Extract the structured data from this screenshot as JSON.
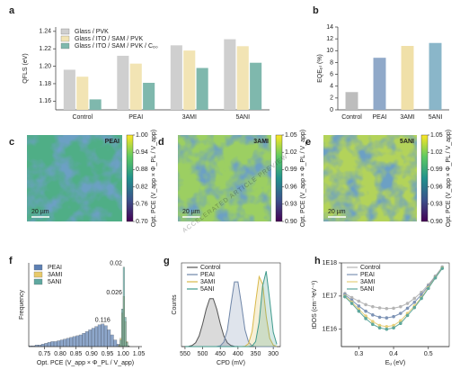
{
  "watermark": "ACCELERATED ARTICLE PREVIEW",
  "chart_data": [
    {
      "type": "bar",
      "label": "a",
      "ylabel": "QFLS (eV)",
      "categories": [
        "Control",
        "PEAI",
        "3AMI",
        "5ANI"
      ],
      "series": [
        {
          "name": "Glass / PVK",
          "color": "#cfcfcf",
          "values": [
            1.196,
            1.212,
            1.224,
            1.231
          ]
        },
        {
          "name": "Glass / ITO / SAM / PVK",
          "color": "#f2e4b4",
          "values": [
            1.188,
            1.203,
            1.218,
            1.223
          ]
        },
        {
          "name": "Glass / ITO / SAM / PVK / C₆₀",
          "color": "#7fb8ad",
          "values": [
            1.162,
            1.181,
            1.198,
            1.204
          ]
        }
      ],
      "ylim": [
        1.15,
        1.245
      ],
      "yticks": [
        1.16,
        1.18,
        {
          "value": 1.2,
          "label": "1.20"
        },
        1.22,
        1.24
      ],
      "legend": "top-left"
    },
    {
      "type": "bar",
      "label": "b",
      "ylabel": "EQEₚₗ (%)",
      "categories": [
        "Control",
        "PEAI",
        "3AMI",
        "5ANI"
      ],
      "values": [
        3,
        8.8,
        10.8,
        11.3
      ],
      "colors": [
        "#bdbdbd",
        "#90a9c9",
        "#f0e0a8",
        "#8ab6c9"
      ],
      "ylim": [
        0,
        14
      ],
      "yticks": [
        0,
        2,
        4,
        6,
        8,
        10,
        12,
        14
      ]
    },
    {
      "type": "map",
      "label": "c",
      "annotation": "PEAI",
      "scale_bar": "20 µm",
      "color": "#4fae86",
      "colormap": "viridis",
      "colorbar_label": "Opt. PCE (V_app × Φ_PL / V_app)",
      "ylim": [
        0.7,
        1.0
      ],
      "yticks": [
        {
          "value": 1.0,
          "label": "1.00"
        },
        0.94,
        0.88,
        0.82,
        0.76,
        {
          "value": 0.7,
          "label": "0.70"
        }
      ]
    },
    {
      "type": "map",
      "label": "d",
      "annotation": "3AMI",
      "scale_bar": "20 µm",
      "color": "#9ccf62",
      "colormap": "viridis",
      "colorbar_label": "Opt. PCE (V_app × Φ_PL / V_app)",
      "ylim": [
        0.9,
        1.05
      ],
      "yticks": [
        1.05,
        1.02,
        0.99,
        0.96,
        0.93,
        {
          "value": 0.9,
          "label": "0.90"
        }
      ]
    },
    {
      "type": "map",
      "label": "e",
      "annotation": "5ANI",
      "scale_bar": "20 µm",
      "color": "#b3d35a",
      "colormap": "viridis",
      "colorbar_label": "Opt. PCE (V_app × Φ_PL / V_app)",
      "ylim": [
        0.9,
        1.05
      ],
      "yticks": [
        1.05,
        1.02,
        0.99,
        0.96,
        0.93,
        {
          "value": 0.9,
          "label": "0.90"
        }
      ]
    },
    {
      "type": "histogram",
      "label": "f",
      "xlabel": "Opt. PCE (V_app × Φ_PL / V_app)",
      "ylabel": "Frequency",
      "series": [
        {
          "name": "PEAI",
          "color": "#5d80b3",
          "sd": 0.116,
          "bins": [
            0.7,
            0.71,
            0.72,
            0.73,
            0.74,
            0.75,
            0.76,
            0.77,
            0.78,
            0.79,
            0.8,
            0.81,
            0.82,
            0.83,
            0.84,
            0.85,
            0.86,
            0.87,
            0.88,
            0.89,
            0.9,
            0.91,
            0.92,
            0.93,
            0.94,
            0.95,
            0.96,
            0.97,
            0.98,
            0.99,
            1.0
          ],
          "counts": [
            1,
            1,
            2,
            2,
            3,
            4,
            5,
            6,
            6,
            7,
            8,
            9,
            10,
            11,
            12,
            13,
            14,
            16,
            18,
            20,
            22,
            24,
            26,
            27,
            25,
            20,
            14,
            8,
            3,
            1
          ]
        },
        {
          "name": "3AMI",
          "color": "#e8c96a",
          "sd": 0.026,
          "bins": [
            0.985,
            0.99,
            0.995,
            1.0,
            1.005,
            1.01,
            1.015,
            1.02
          ],
          "counts": [
            2,
            10,
            40,
            60,
            30,
            6,
            1
          ]
        },
        {
          "name": "5ANI",
          "color": "#5fa8a0",
          "sd": 0.02,
          "bins": [
            0.985,
            0.99,
            0.995,
            1.0,
            1.005,
            1.01,
            1.015,
            1.02
          ],
          "counts": [
            1,
            8,
            45,
            95,
            35,
            5,
            1
          ]
        }
      ],
      "xlim": [
        0.7,
        1.06
      ],
      "ylim": [
        0,
        100
      ],
      "xticks": [
        0.75,
        {
          "value": 0.8,
          "label": "0.80"
        },
        0.85,
        {
          "value": 0.9,
          "label": "0.90"
        },
        0.95,
        {
          "value": 1.0,
          "label": "1.00"
        },
        1.05
      ],
      "legend": "top-left"
    },
    {
      "type": "line",
      "label": "g",
      "xlabel": "CPD (mV)",
      "ylabel": "Counts",
      "x": [
        550,
        540,
        530,
        520,
        510,
        500,
        490,
        480,
        470,
        460,
        450,
        440,
        430,
        420,
        410,
        400,
        390,
        380,
        370,
        360,
        350,
        340,
        330,
        320,
        310,
        300,
        290
      ],
      "series": [
        {
          "name": "Control",
          "color": "#555555",
          "values": [
            0.001,
            0.003,
            0.015,
            0.05,
            0.14,
            0.3,
            0.49,
            0.63,
            0.63,
            0.49,
            0.3,
            0.14,
            0.05,
            0.015,
            0.003,
            0.001,
            0,
            0,
            0,
            0,
            0,
            0,
            0,
            0,
            0,
            0,
            0
          ]
        },
        {
          "name": "PEAI",
          "color": "#6f86a8",
          "values": [
            0,
            0,
            0,
            0,
            0,
            0,
            0,
            0,
            0,
            0.001,
            0.01,
            0.06,
            0.22,
            0.55,
            0.85,
            0.85,
            0.55,
            0.22,
            0.06,
            0.01,
            0.001,
            0,
            0,
            0,
            0,
            0,
            0
          ]
        },
        {
          "name": "3AMI",
          "color": "#d9b94a",
          "values": [
            0,
            0,
            0,
            0,
            0,
            0,
            0,
            0,
            0,
            0,
            0,
            0,
            0,
            0,
            0,
            0,
            0,
            0.004,
            0.04,
            0.2,
            0.58,
            0.92,
            0.82,
            0.4,
            0.11,
            0.02,
            0.001
          ]
        },
        {
          "name": "5ANI",
          "color": "#3f9a8c",
          "values": [
            0,
            0,
            0,
            0,
            0,
            0,
            0,
            0,
            0,
            0,
            0,
            0,
            0,
            0,
            0,
            0,
            0,
            0,
            0,
            0.007,
            0.066,
            0.32,
            0.8,
            0.99,
            0.61,
            0.19,
            0.03
          ]
        }
      ],
      "xlim": [
        560,
        280
      ],
      "ylim": [
        0,
        1.1
      ],
      "xticks": [
        550,
        500,
        450,
        400,
        350,
        300
      ],
      "legend": "top-left"
    },
    {
      "type": "line",
      "label": "h",
      "xlabel": "Eᵤ (eV)",
      "ylabel": "tDOS (cm⁻³eV⁻¹)",
      "log_y": true,
      "markers": true,
      "x": [
        0.26,
        0.28,
        0.3,
        0.32,
        0.34,
        0.36,
        0.38,
        0.4,
        0.42,
        0.44,
        0.46,
        0.48,
        0.5,
        0.52,
        0.54
      ],
      "series": [
        {
          "name": "Control",
          "color": "#b5b5b5",
          "values": [
            1.2e+17,
            9e+16,
            7e+16,
            5.5e+16,
            4.8e+16,
            4.4e+16,
            4.2e+16,
            4.3e+16,
            4.8e+16,
            6e+16,
            8.5e+16,
            1.3e+17,
            2.2e+17,
            4e+17,
            7.5e+17
          ]
        },
        {
          "name": "PEAI",
          "color": "#7d93b5",
          "values": [
            1.1e+17,
            7.5e+16,
            5e+16,
            3.5e+16,
            2.7e+16,
            2.3e+16,
            2.2e+16,
            2.4e+16,
            3e+16,
            4.3e+16,
            6.5e+16,
            1.1e+17,
            2e+17,
            3.8e+17,
            7.2e+17
          ]
        },
        {
          "name": "3AMI",
          "color": "#e6cf7c",
          "values": [
            1e+17,
            6.5e+16,
            4e+16,
            2.5e+16,
            1.7e+16,
            1.3e+16,
            1.2e+16,
            1.3e+16,
            1.8e+16,
            3e+16,
            5e+16,
            9e+16,
            1.8e+17,
            3.6e+17,
            7e+17
          ]
        },
        {
          "name": "5ANI",
          "color": "#5ea79c",
          "values": [
            9.5e+16,
            6e+16,
            3.5e+16,
            2.1e+16,
            1.4e+16,
            1.1e+16,
            1e+16,
            1.1e+16,
            1.5e+16,
            2.6e+16,
            4.5e+16,
            8.5e+16,
            1.7e+17,
            3.5e+17,
            6.8e+17
          ]
        }
      ],
      "xlim": [
        0.25,
        0.56
      ],
      "ylim": [
        3000000000000000.0,
        1e+18
      ],
      "xticks": [
        0.3,
        0.4,
        0.5
      ],
      "yticks": [
        {
          "value": 1e+16,
          "label": "1E16"
        },
        {
          "value": 1e+17,
          "label": "1E17"
        },
        {
          "value": 1e+18,
          "label": "1E18"
        }
      ],
      "legend": "top-left"
    }
  ]
}
